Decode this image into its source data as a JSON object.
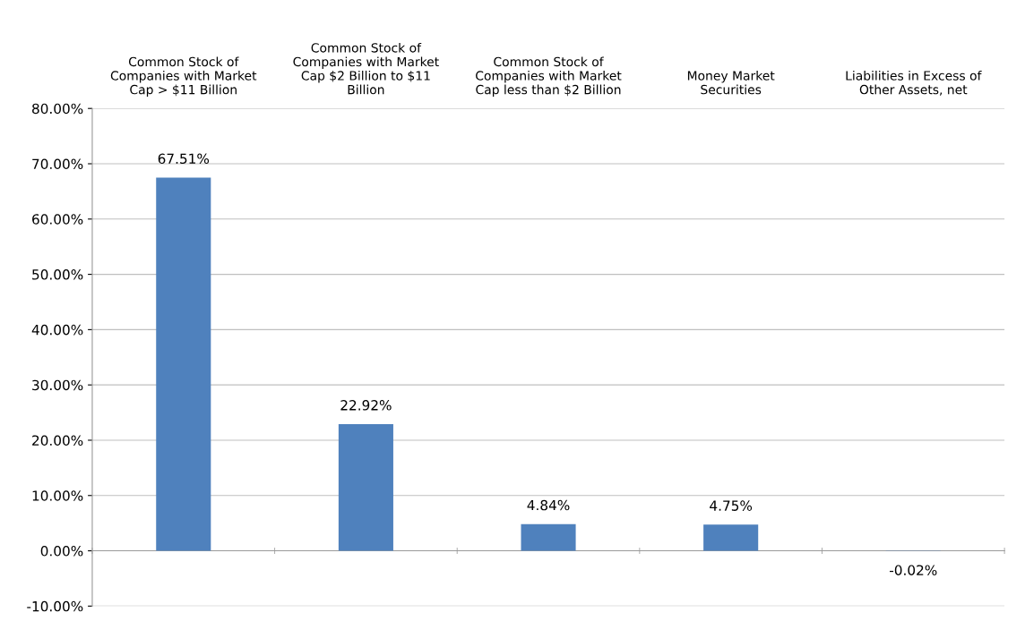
{
  "chart_data": {
    "type": "bar",
    "categories": [
      "Common Stock of\nCompanies with Market\nCap > $11 Billion",
      "Common Stock of\nCompanies with Market\nCap $2 Billion to $11\nBillion",
      "Common Stock of\nCompanies with Market\nCap less than $2 Billion",
      "Money Market\nSecurities",
      "Liabilities in Excess of\nOther Assets, net"
    ],
    "values": [
      67.51,
      22.92,
      4.84,
      4.75,
      -0.02
    ],
    "value_labels": [
      "67.51%",
      "22.92%",
      "4.84%",
      "4.75%",
      "-0.02%"
    ],
    "color": "#4f81bd",
    "ylim": [
      -10,
      80
    ],
    "yticks": [
      {
        "value": -10,
        "label": "-10.00%"
      },
      {
        "value": 0,
        "label": "0.00%"
      },
      {
        "value": 10,
        "label": "10.00%"
      },
      {
        "value": 20,
        "label": "20.00%"
      },
      {
        "value": 30,
        "label": "30.00%"
      },
      {
        "value": 40,
        "label": "40.00%"
      },
      {
        "value": 50,
        "label": "50.00%"
      },
      {
        "value": 60,
        "label": "60.00%"
      },
      {
        "value": 70,
        "label": "70.00%"
      },
      {
        "value": 80,
        "label": "80.00%"
      }
    ],
    "grid": "y"
  }
}
